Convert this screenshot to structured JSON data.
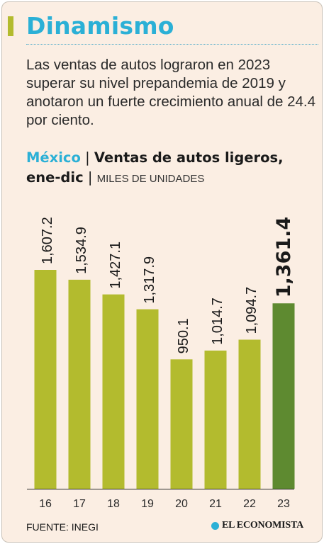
{
  "header": {
    "title": "Dinamismo",
    "intro": "Las ventas de autos lograron en 2023 superar su nivel prepandemia de 2019 y anotaron un fuerte crecimiento anual de 24.4 por ciento."
  },
  "subtitle": {
    "country": "México",
    "separator": "|",
    "main": "Ventas de autos ligeros, ene-dic",
    "units": "MILES DE UNIDADES"
  },
  "chart_data": {
    "type": "bar",
    "categories": [
      "16",
      "17",
      "18",
      "19",
      "20",
      "21",
      "22",
      "23"
    ],
    "values": [
      1607.2,
      1534.9,
      1427.1,
      1317.9,
      950.1,
      1014.7,
      1094.7,
      1361.4
    ],
    "labels": [
      "1,607.2",
      "1,534.9",
      "1,427.1",
      "1,317.9",
      "950.1",
      "1,014.7",
      "1,094.7",
      "1,361.4"
    ],
    "highlight_index": 7,
    "ylim": [
      0,
      1607.2
    ],
    "colors": {
      "bar": "#b3bb2e",
      "highlight": "#5e8a30"
    }
  },
  "footer": {
    "source": "FUENTE: INEGI",
    "brand": "EL ECONOMISTA"
  }
}
